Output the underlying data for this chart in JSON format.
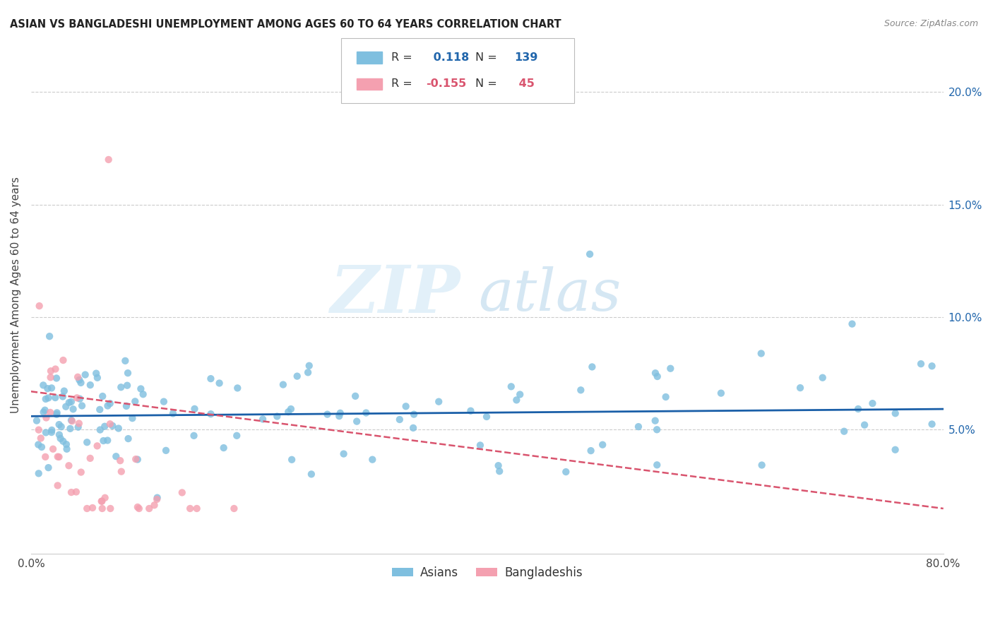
{
  "title": "ASIAN VS BANGLADESHI UNEMPLOYMENT AMONG AGES 60 TO 64 YEARS CORRELATION CHART",
  "source": "Source: ZipAtlas.com",
  "ylabel": "Unemployment Among Ages 60 to 64 years",
  "xlim": [
    0.0,
    0.8
  ],
  "ylim": [
    -0.005,
    0.225
  ],
  "yticks_right": [
    0.05,
    0.1,
    0.15,
    0.2
  ],
  "yticklabels_right": [
    "5.0%",
    "10.0%",
    "15.0%",
    "20.0%"
  ],
  "asian_color": "#7fbfdf",
  "bangladeshi_color": "#f4a0b0",
  "asian_R": 0.118,
  "asian_N": 139,
  "bangladeshi_R": -0.155,
  "bangladeshi_N": 45,
  "asian_trend_color": "#1a5fa8",
  "bangladeshi_trend_color": "#d9546e",
  "background_color": "#ffffff",
  "grid_color": "#cccccc",
  "watermark_zip": "ZIP",
  "watermark_atlas": "atlas",
  "asian_label": "Asians",
  "bangladeshi_label": "Bangladeshis"
}
